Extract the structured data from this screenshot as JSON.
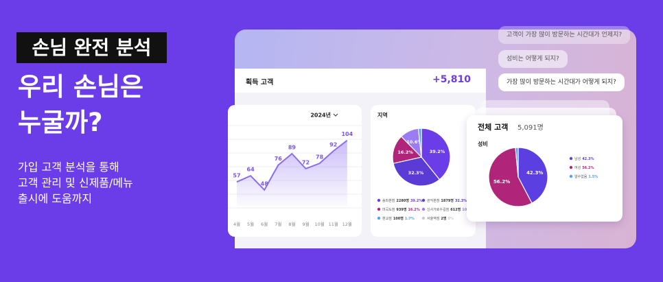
{
  "hero": {
    "badge": "손님 완전 분석",
    "headline_lines": [
      "우리 손님은",
      "누굴까?"
    ],
    "description_lines": [
      "가입 고객 분석을 통해",
      "고객 관리 및 신제품/메뉴",
      "출시에 도움까지"
    ]
  },
  "chat_bubbles": [
    "고객이 가장 많이 방문하는 시간대가 언제지?",
    "성비는 어떻게 되지?",
    "가장 많이 방문하는 시간대가 어떻게 되지?"
  ],
  "acquisition": {
    "title": "획득 고객",
    "total": "+5,810"
  },
  "chart_data": [
    {
      "type": "line",
      "period": "2024년",
      "categories": [
        "4월",
        "5월",
        "6월",
        "7월",
        "8월",
        "9월",
        "10월",
        "11월",
        "12월"
      ],
      "values": [
        57,
        64,
        48,
        76,
        89,
        72,
        78,
        92,
        104
      ],
      "color": "#8b6cf0",
      "ylim": [
        30,
        120
      ]
    },
    {
      "type": "pie",
      "title": "지역",
      "categories": [
        "송파본점",
        "관악본점",
        "마곡도점",
        "신사가로수길점",
        "판교점",
        "서울역점"
      ],
      "counts": [
        "2280명",
        "1879명",
        "939명",
        "612명",
        "100명",
        "2명"
      ],
      "values": [
        39.2,
        32.3,
        16.2,
        10.6,
        1.7,
        0
      ],
      "value_labels": [
        "39.2%",
        "32.3%",
        "16.2%",
        "10.6%",
        "1.7%",
        "0%"
      ],
      "colors": [
        "#6a3de8",
        "#5a3bd6",
        "#b0257a",
        "#9b7cf5",
        "#4fa3f7",
        "#c9c9d2"
      ]
    },
    {
      "type": "pie",
      "card_title": "전체 고객",
      "card_total": "5,091명",
      "title": "성비",
      "categories": [
        "남성",
        "여성",
        "알수없음"
      ],
      "values": [
        42.3,
        56.2,
        1.5
      ],
      "value_labels": [
        "42.3%",
        "56.2%",
        "1.5%"
      ],
      "colors": [
        "#5b3fe0",
        "#b0257a",
        "#4fa3f7"
      ]
    }
  ]
}
